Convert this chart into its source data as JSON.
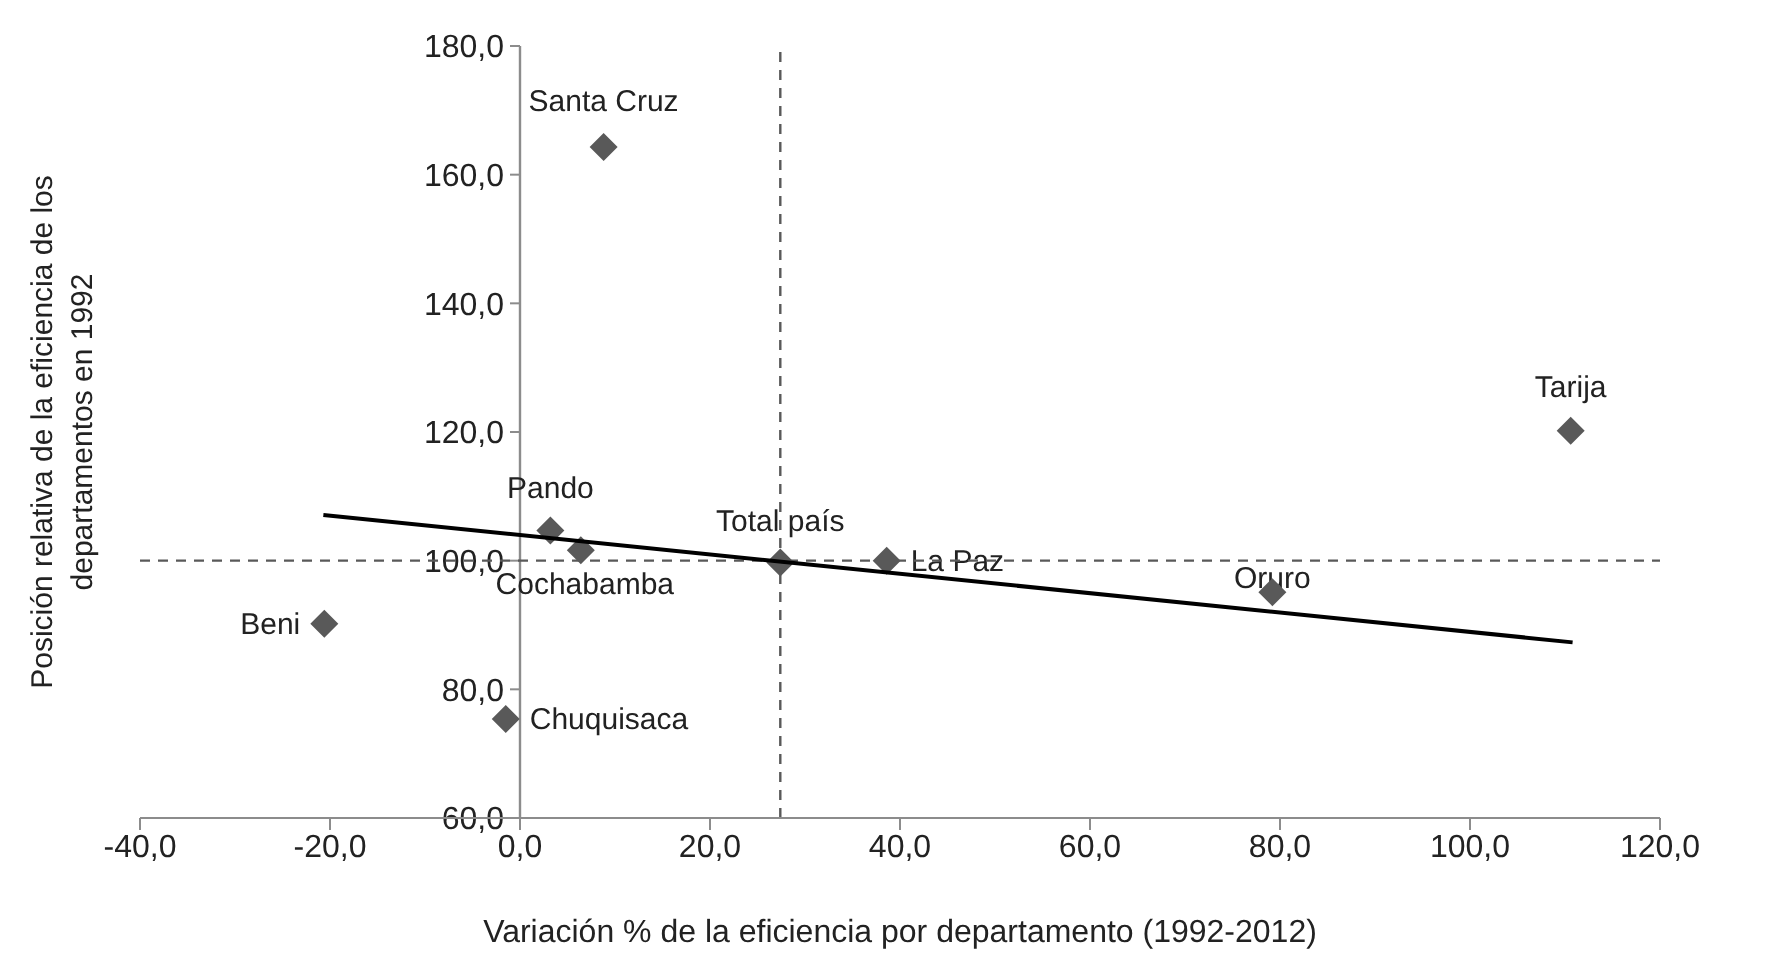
{
  "chart_data": {
    "type": "scatter",
    "xlabel": "Variación % de la eficiencia por departamento (1992-2012)",
    "ylabel": "Posición relativa de la eficiencia de los departamentos en 1992",
    "xlim": [
      -40,
      120
    ],
    "ylim": [
      60,
      180
    ],
    "xticks": [
      {
        "value": -40,
        "label": "-40,0"
      },
      {
        "value": -20,
        "label": "-20,0"
      },
      {
        "value": 0,
        "label": "0,0"
      },
      {
        "value": 20,
        "label": "20,0"
      },
      {
        "value": 40,
        "label": "40,0"
      },
      {
        "value": 60,
        "label": "60,0"
      },
      {
        "value": 80,
        "label": "80,0"
      },
      {
        "value": 100,
        "label": "100,0"
      },
      {
        "value": 120,
        "label": "120,0"
      }
    ],
    "yticks": [
      {
        "value": 60,
        "label": "60,0"
      },
      {
        "value": 80,
        "label": "80,0"
      },
      {
        "value": 100,
        "label": "100,0"
      },
      {
        "value": 120,
        "label": "120,0"
      },
      {
        "value": 140,
        "label": "140,0"
      },
      {
        "value": 160,
        "label": "160,0"
      },
      {
        "value": 180,
        "label": "180,0"
      }
    ],
    "grid": false,
    "legend": false,
    "marker": "diamond",
    "series": [
      {
        "color": "#595959",
        "x": [
          8.8,
          3.2,
          6.4,
          27.4,
          -20.6,
          -1.5,
          38.6,
          79.2,
          110.6
        ],
        "values": [
          164.3,
          104.7,
          101.6,
          99.7,
          90.2,
          75.4,
          100,
          95.1,
          120.2
        ]
      },
      {
        "type": "line",
        "color": "#000000",
        "marker": "none",
        "line_style": "solid",
        "x": [
          -20.7,
          110.8
        ],
        "values": [
          107.1,
          87.3
        ]
      }
    ],
    "ref_lines": [
      {
        "axis": "x",
        "value": 27.4,
        "color": "#595959",
        "line_style": "dashed"
      },
      {
        "axis": "y",
        "value": 100,
        "color": "#595959",
        "line_style": "dashed"
      }
    ],
    "annotations": [
      {
        "text": "Santa Cruz",
        "x": 8.8,
        "y": 164.3
      },
      {
        "text": "Pando",
        "x": 3.2,
        "y": 104.7
      },
      {
        "text": "Cochabamba",
        "x": 6.4,
        "y": 101.6
      },
      {
        "text": "Total país",
        "x": 27.4,
        "y": 99.7
      },
      {
        "text": "Beni",
        "x": -20.6,
        "y": 90.2
      },
      {
        "text": "Chuquisaca",
        "x": -1.5,
        "y": 75.4
      },
      {
        "text": "La Paz",
        "x": 38.6,
        "y": 100
      },
      {
        "text": "Oruro",
        "x": 79.2,
        "y": 95.1
      },
      {
        "text": "Tarija",
        "x": 110.6,
        "y": 120.2
      }
    ]
  }
}
